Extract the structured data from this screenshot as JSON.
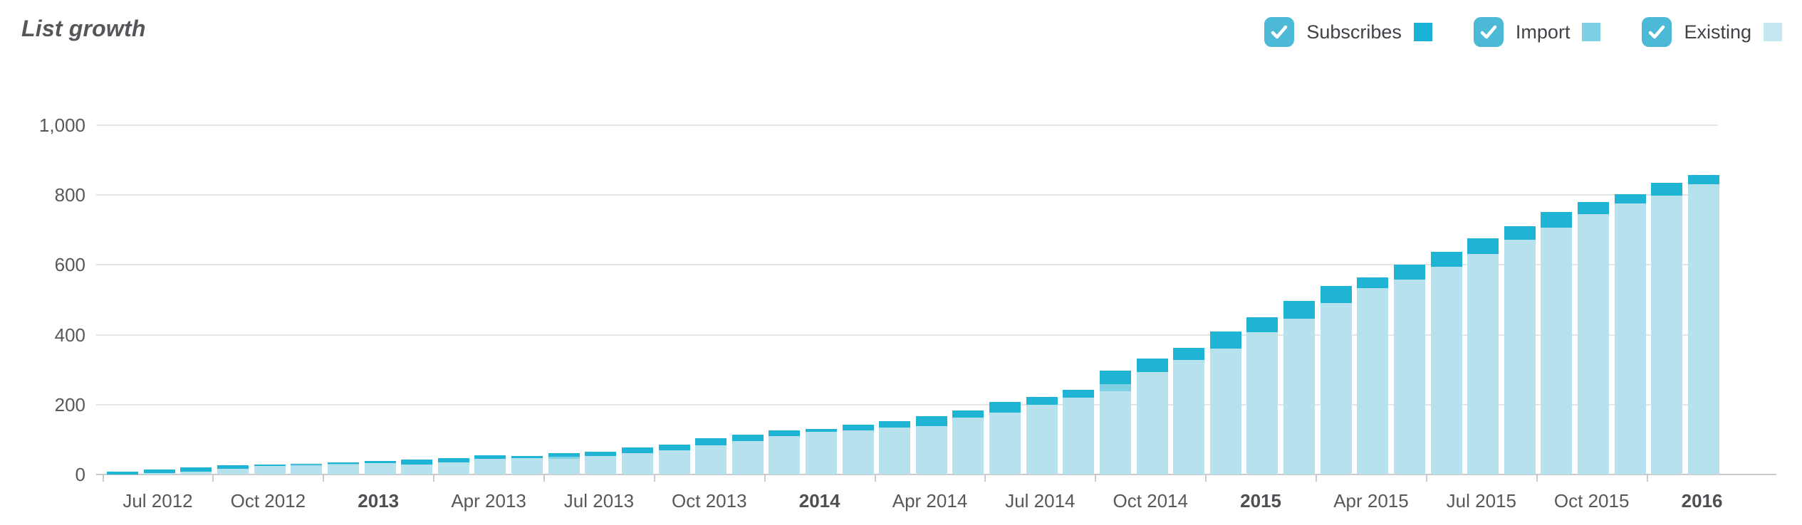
{
  "header": {
    "title": "List growth"
  },
  "legend": {
    "checkbox_color": "#4cb9d6",
    "items": [
      {
        "label": "Subscribes",
        "swatch_color": "#19b2d6",
        "checked": true
      },
      {
        "label": "Import",
        "swatch_color": "#7ed0e4",
        "checked": true
      },
      {
        "label": "Existing",
        "swatch_color": "#c3e8f2",
        "checked": true
      }
    ]
  },
  "chart_data": {
    "type": "bar",
    "stacked": true,
    "title": "List growth",
    "xlabel": "",
    "ylabel": "",
    "ylim": [
      0,
      1000
    ],
    "grid": true,
    "legend_position": "top-right",
    "y_ticks": [
      "0",
      "200",
      "400",
      "600",
      "800",
      "1,000"
    ],
    "y_tick_values": [
      0,
      200,
      400,
      600,
      800,
      1000
    ],
    "x_tick_labels": [
      {
        "label": "Jul 2012",
        "bold": false
      },
      {
        "label": "Oct 2012",
        "bold": false
      },
      {
        "label": "2013",
        "bold": true
      },
      {
        "label": "Apr 2013",
        "bold": false
      },
      {
        "label": "Jul 2013",
        "bold": false
      },
      {
        "label": "Oct 2013",
        "bold": false
      },
      {
        "label": "2014",
        "bold": true
      },
      {
        "label": "Apr 2014",
        "bold": false
      },
      {
        "label": "Jul 2014",
        "bold": false
      },
      {
        "label": "Oct 2014",
        "bold": false
      },
      {
        "label": "2015",
        "bold": true
      },
      {
        "label": "Apr 2015",
        "bold": false
      },
      {
        "label": "Jul 2015",
        "bold": false
      },
      {
        "label": "Oct 2015",
        "bold": false
      },
      {
        "label": "2016",
        "bold": true
      }
    ],
    "categories": [
      "Jul 2012",
      "Aug 2012",
      "Sep 2012",
      "Oct 2012",
      "Nov 2012",
      "Dec 2012",
      "Jan 2013",
      "Feb 2013",
      "Mar 2013",
      "Apr 2013",
      "May 2013",
      "Jun 2013",
      "Jul 2013",
      "Aug 2013",
      "Sep 2013",
      "Oct 2013",
      "Nov 2013",
      "Dec 2013",
      "Jan 2014",
      "Feb 2014",
      "Mar 2014",
      "Apr 2014",
      "May 2014",
      "Jun 2014",
      "Jul 2014",
      "Aug 2014",
      "Sep 2014",
      "Oct 2014",
      "Nov 2014",
      "Dec 2014",
      "Jan 2015",
      "Feb 2015",
      "Mar 2015",
      "Apr 2015",
      "May 2015",
      "Jun 2015",
      "Jul 2015",
      "Aug 2015",
      "Sep 2015",
      "Oct 2015",
      "Nov 2015",
      "Dec 2015",
      "Jan 2016",
      "Feb 2016"
    ],
    "series": [
      {
        "name": "Existing",
        "color": "#b7e1ed",
        "values": [
          0,
          4,
          9,
          16,
          24,
          25,
          29,
          33,
          28,
          35,
          45,
          47,
          45,
          53,
          62,
          69,
          83,
          96,
          110,
          122,
          126,
          134,
          138,
          162,
          178,
          199,
          219,
          239,
          293,
          327,
          360,
          407,
          446,
          491,
          533,
          558,
          594,
          631,
          673,
          707,
          745,
          775,
          798,
          831
        ]
      },
      {
        "name": "Import",
        "color": "#7ed0e4",
        "values": [
          0,
          0,
          0,
          0,
          0,
          4,
          2,
          0,
          0,
          0,
          0,
          0,
          5,
          0,
          0,
          0,
          0,
          0,
          0,
          0,
          0,
          0,
          0,
          0,
          0,
          0,
          0,
          20,
          0,
          0,
          0,
          0,
          0,
          0,
          0,
          0,
          0,
          0,
          0,
          0,
          0,
          0,
          0,
          0
        ]
      },
      {
        "name": "Subscribes",
        "color": "#1fb4d3",
        "values": [
          9,
          11,
          11,
          10,
          4,
          2,
          3,
          5,
          14,
          12,
          10,
          5,
          12,
          13,
          16,
          16,
          20,
          19,
          16,
          8,
          16,
          18,
          30,
          22,
          30,
          24,
          23,
          38,
          39,
          35,
          50,
          43,
          50,
          49,
          31,
          43,
          43,
          46,
          37,
          44,
          35,
          27,
          38,
          27
        ]
      }
    ]
  },
  "colors": {
    "grid": "#e4e4e4",
    "axis": "#c8cacc",
    "tick_text": "#56585c",
    "title_text": "#55565a"
  }
}
